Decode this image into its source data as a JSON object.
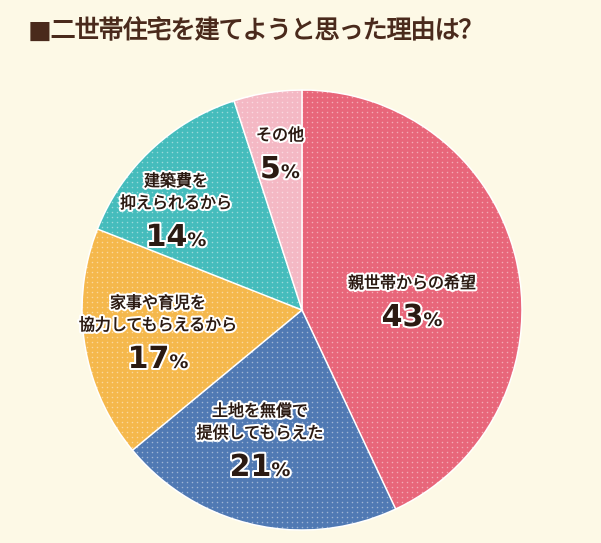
{
  "title": "■二世帯住宅を建てようと思った理由は？",
  "chart_data": {
    "type": "pie",
    "title": "■二世帯住宅を建てようと思った理由は？",
    "slices": [
      {
        "label": [
          "親世帯からの希望"
        ],
        "value": 43,
        "color": "#e8667a"
      },
      {
        "label": [
          "土地を無償で",
          "提供してもらえた"
        ],
        "value": 21,
        "color": "#5079b3"
      },
      {
        "label": [
          "家事や育児を",
          "協力してもらえるから"
        ],
        "value": 17,
        "color": "#f5b84c"
      },
      {
        "label": [
          "建築費を",
          "抑えられるから"
        ],
        "value": 14,
        "color": "#45bcbc"
      },
      {
        "label": [
          "その他"
        ],
        "value": 5,
        "color": "#f4b8c4"
      }
    ],
    "unit": "%"
  }
}
